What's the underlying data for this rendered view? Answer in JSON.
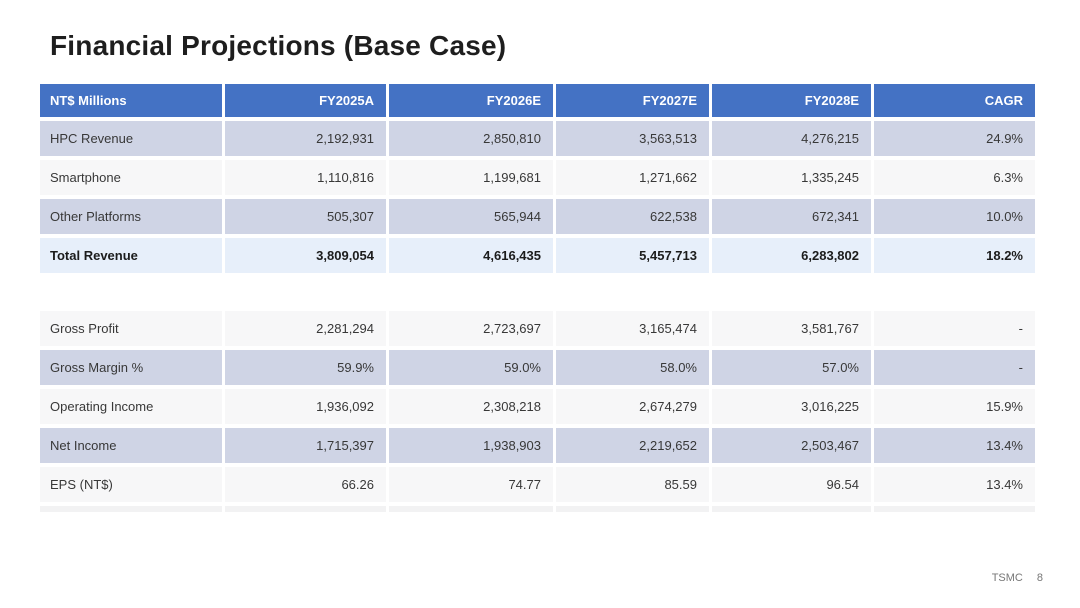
{
  "title": "Financial Projections (Base Case)",
  "footer": {
    "brand": "TSMC",
    "page": "8"
  },
  "colors": {
    "header_blue": "#4472C4",
    "row_shade": "#CFD4E5",
    "row_plain": "#F7F7F8",
    "row_total": "#E7EFFA",
    "title_text": "#1E1E1E",
    "footer_text": "#777777"
  },
  "table": {
    "columns": [
      "NT$ Millions",
      "FY2025A",
      "FY2026E",
      "FY2027E",
      "FY2028E",
      "CAGR"
    ],
    "sections": [
      {
        "rows": [
          {
            "label": "HPC Revenue",
            "values": [
              "2,192,931",
              "2,850,810",
              "3,563,513",
              "4,276,215",
              "24.9%"
            ],
            "style": "shade"
          },
          {
            "label": "Smartphone",
            "values": [
              "1,110,816",
              "1,199,681",
              "1,271,662",
              "1,335,245",
              "6.3%"
            ],
            "style": "plain"
          },
          {
            "label": "Other Platforms",
            "values": [
              "505,307",
              "565,944",
              "622,538",
              "672,341",
              "10.0%"
            ],
            "style": "shade"
          },
          {
            "label": "Total Revenue",
            "values": [
              "3,809,054",
              "4,616,435",
              "5,457,713",
              "6,283,802",
              "18.2%"
            ],
            "style": "total"
          }
        ]
      },
      {
        "rows": [
          {
            "label": "Gross Profit",
            "values": [
              "2,281,294",
              "2,723,697",
              "3,165,474",
              "3,581,767",
              "-"
            ],
            "style": "plain"
          },
          {
            "label": "Gross Margin %",
            "values": [
              "59.9%",
              "59.0%",
              "58.0%",
              "57.0%",
              "-"
            ],
            "style": "shade"
          },
          {
            "label": "Operating Income",
            "values": [
              "1,936,092",
              "2,308,218",
              "2,674,279",
              "3,016,225",
              "15.9%"
            ],
            "style": "plain"
          },
          {
            "label": "Net Income",
            "values": [
              "1,715,397",
              "1,938,903",
              "2,219,652",
              "2,503,467",
              "13.4%"
            ],
            "style": "shade"
          },
          {
            "label": "EPS (NT$)",
            "values": [
              "66.26",
              "74.77",
              "85.59",
              "96.54",
              "13.4%"
            ],
            "style": "plain"
          }
        ]
      }
    ]
  }
}
